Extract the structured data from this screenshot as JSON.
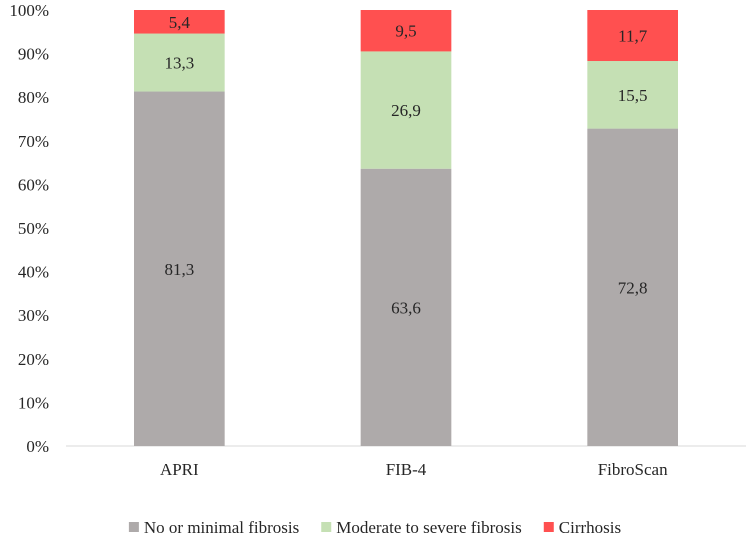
{
  "chart_data": {
    "type": "bar",
    "stacked": true,
    "percent_stacked": true,
    "categories": [
      "APRI",
      "FIB-4",
      "FibroScan"
    ],
    "series": [
      {
        "name": "No or minimal fibrosis",
        "color": "#aeaaaa",
        "values": [
          81.3,
          63.6,
          72.8
        ],
        "labels": [
          "81,3",
          "63,6",
          "72,8"
        ]
      },
      {
        "name": "Moderate to severe fibrosis",
        "color": "#c5e0b4",
        "values": [
          13.3,
          26.9,
          15.5
        ],
        "labels": [
          "13,3",
          "26,9",
          "15,5"
        ]
      },
      {
        "name": "Cirrhosis",
        "color": "#ff5050",
        "values": [
          5.4,
          9.5,
          11.7
        ],
        "labels": [
          "5,4",
          "9,5",
          "11,7"
        ]
      }
    ],
    "y_ticks": [
      "0%",
      "10%",
      "20%",
      "30%",
      "40%",
      "50%",
      "60%",
      "70%",
      "80%",
      "90%",
      "100%"
    ],
    "ylim": [
      0,
      100
    ],
    "grid": false,
    "legend_position": "bottom"
  }
}
